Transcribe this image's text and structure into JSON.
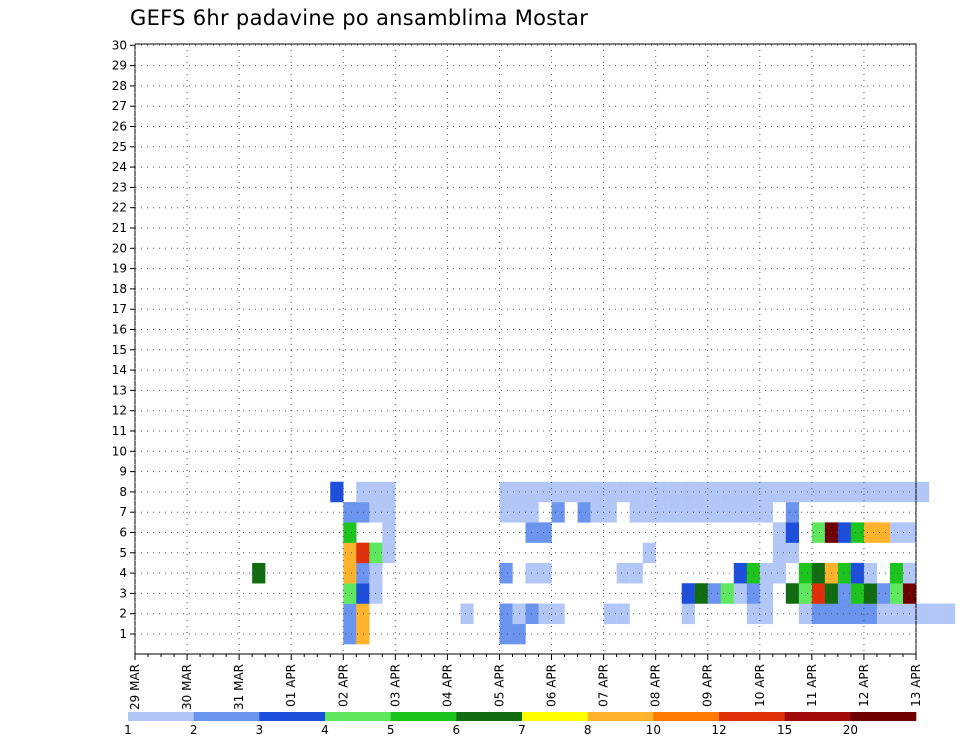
{
  "chart_data": {
    "type": "heatmap",
    "title": "GEFS 6hr padavine po ansamblima Mostar",
    "x_tick_labels": [
      "29 MAR",
      "30 MAR",
      "31 MAR",
      "01 APR",
      "02 APR",
      "03 APR",
      "04 APR",
      "05 APR",
      "06 APR",
      "07 APR",
      "08 APR",
      "09 APR",
      "10 APR",
      "11 APR",
      "12 APR",
      "13 APR"
    ],
    "y_tick_labels": [
      "1",
      "2",
      "3",
      "4",
      "5",
      "6",
      "7",
      "8",
      "9",
      "10",
      "11",
      "12",
      "13",
      "14",
      "15",
      "16",
      "17",
      "18",
      "19",
      "20",
      "21",
      "22",
      "23",
      "24",
      "25",
      "26",
      "27",
      "28",
      "29",
      "30"
    ],
    "x_unit_label": "6-hour steps starting 29 MAR 00",
    "colorbar": {
      "labels": [
        "1",
        "2",
        "3",
        "4",
        "5",
        "6",
        "7",
        "8",
        "10",
        "12",
        "15",
        "20"
      ],
      "colors": [
        "#b3c7f7",
        "#6b94ee",
        "#1e4edc",
        "#5fe85f",
        "#1ec41e",
        "#116b11",
        "#ffff00",
        "#ffb32c",
        "#ff7a00",
        "#e0300a",
        "#a10a0a",
        "#6e0000"
      ]
    },
    "cells": [
      [
        1,
        16,
        2
      ],
      [
        1,
        17,
        8
      ],
      [
        1,
        28,
        2
      ],
      [
        1,
        29,
        2
      ],
      [
        2,
        16,
        2
      ],
      [
        2,
        17,
        8
      ],
      [
        2,
        25,
        1
      ],
      [
        2,
        28,
        2
      ],
      [
        2,
        29,
        1
      ],
      [
        2,
        30,
        2
      ],
      [
        2,
        31,
        1
      ],
      [
        2,
        32,
        1
      ],
      [
        2,
        36,
        1
      ],
      [
        2,
        37,
        1
      ],
      [
        2,
        42,
        1
      ],
      [
        2,
        47,
        1
      ],
      [
        2,
        48,
        1
      ],
      [
        2,
        51,
        1
      ],
      [
        2,
        52,
        2
      ],
      [
        2,
        53,
        2
      ],
      [
        2,
        54,
        2
      ],
      [
        2,
        55,
        2
      ],
      [
        2,
        56,
        2
      ],
      [
        2,
        57,
        1
      ],
      [
        2,
        58,
        1
      ],
      [
        2,
        59,
        1
      ],
      [
        2,
        60,
        1
      ],
      [
        2,
        61,
        1
      ],
      [
        2,
        62,
        1
      ],
      [
        3,
        16,
        4
      ],
      [
        3,
        17,
        3
      ],
      [
        3,
        18,
        1
      ],
      [
        3,
        42,
        3
      ],
      [
        3,
        43,
        6
      ],
      [
        3,
        44,
        2
      ],
      [
        3,
        45,
        4
      ],
      [
        3,
        46,
        1
      ],
      [
        3,
        47,
        2
      ],
      [
        3,
        48,
        1
      ],
      [
        3,
        50,
        6
      ],
      [
        3,
        51,
        4
      ],
      [
        3,
        52,
        10
      ],
      [
        3,
        53,
        6
      ],
      [
        3,
        54,
        2
      ],
      [
        3,
        55,
        5
      ],
      [
        3,
        56,
        6
      ],
      [
        3,
        57,
        2
      ],
      [
        3,
        58,
        4
      ],
      [
        3,
        59,
        12
      ],
      [
        4,
        9,
        6
      ],
      [
        4,
        16,
        8
      ],
      [
        4,
        17,
        2
      ],
      [
        4,
        18,
        1
      ],
      [
        4,
        28,
        2
      ],
      [
        4,
        30,
        1
      ],
      [
        4,
        31,
        1
      ],
      [
        4,
        37,
        1
      ],
      [
        4,
        38,
        1
      ],
      [
        4,
        46,
        3
      ],
      [
        4,
        47,
        5
      ],
      [
        4,
        48,
        1
      ],
      [
        4,
        49,
        1
      ],
      [
        4,
        51,
        5
      ],
      [
        4,
        52,
        6
      ],
      [
        4,
        53,
        8
      ],
      [
        4,
        54,
        5
      ],
      [
        4,
        55,
        3
      ],
      [
        4,
        56,
        1
      ],
      [
        4,
        58,
        5
      ],
      [
        4,
        59,
        1
      ],
      [
        5,
        16,
        8
      ],
      [
        5,
        17,
        10
      ],
      [
        5,
        18,
        4
      ],
      [
        5,
        19,
        1
      ],
      [
        5,
        39,
        1
      ],
      [
        5,
        49,
        1
      ],
      [
        5,
        50,
        1
      ],
      [
        6,
        16,
        5
      ],
      [
        6,
        19,
        1
      ],
      [
        6,
        30,
        2
      ],
      [
        6,
        31,
        2
      ],
      [
        6,
        49,
        1
      ],
      [
        6,
        50,
        3
      ],
      [
        6,
        52,
        4
      ],
      [
        6,
        53,
        12
      ],
      [
        6,
        54,
        3
      ],
      [
        6,
        55,
        5
      ],
      [
        6,
        56,
        8
      ],
      [
        6,
        57,
        8
      ],
      [
        6,
        58,
        1
      ],
      [
        6,
        59,
        1
      ],
      [
        7,
        16,
        2
      ],
      [
        7,
        17,
        2
      ],
      [
        7,
        18,
        1
      ],
      [
        7,
        19,
        1
      ],
      [
        7,
        28,
        1
      ],
      [
        7,
        29,
        1
      ],
      [
        7,
        30,
        1
      ],
      [
        7,
        32,
        2
      ],
      [
        7,
        34,
        2
      ],
      [
        7,
        35,
        1
      ],
      [
        7,
        36,
        1
      ],
      [
        7,
        38,
        1
      ],
      [
        7,
        39,
        1
      ],
      [
        7,
        40,
        1
      ],
      [
        7,
        41,
        1
      ],
      [
        7,
        42,
        1
      ],
      [
        7,
        43,
        1
      ],
      [
        7,
        44,
        1
      ],
      [
        7,
        45,
        1
      ],
      [
        7,
        46,
        1
      ],
      [
        7,
        47,
        1
      ],
      [
        7,
        48,
        1
      ],
      [
        7,
        50,
        2
      ],
      [
        8,
        15,
        3
      ],
      [
        8,
        17,
        1
      ],
      [
        8,
        18,
        1
      ],
      [
        8,
        19,
        1
      ],
      [
        8,
        28,
        1
      ],
      [
        8,
        29,
        1
      ],
      [
        8,
        30,
        1
      ],
      [
        8,
        31,
        1
      ],
      [
        8,
        32,
        1
      ],
      [
        8,
        33,
        1
      ],
      [
        8,
        34,
        1
      ],
      [
        8,
        35,
        1
      ],
      [
        8,
        36,
        1
      ],
      [
        8,
        37,
        1
      ],
      [
        8,
        38,
        1
      ],
      [
        8,
        39,
        1
      ],
      [
        8,
        40,
        1
      ],
      [
        8,
        41,
        1
      ],
      [
        8,
        42,
        1
      ],
      [
        8,
        43,
        1
      ],
      [
        8,
        44,
        1
      ],
      [
        8,
        45,
        1
      ],
      [
        8,
        46,
        1
      ],
      [
        8,
        47,
        1
      ],
      [
        8,
        48,
        1
      ],
      [
        8,
        49,
        1
      ],
      [
        8,
        50,
        1
      ],
      [
        8,
        51,
        1
      ],
      [
        8,
        52,
        1
      ],
      [
        8,
        53,
        1
      ],
      [
        8,
        54,
        1
      ],
      [
        8,
        55,
        1
      ],
      [
        8,
        56,
        1
      ],
      [
        8,
        57,
        1
      ],
      [
        8,
        58,
        1
      ],
      [
        8,
        59,
        1
      ],
      [
        8,
        60,
        1
      ]
    ]
  }
}
